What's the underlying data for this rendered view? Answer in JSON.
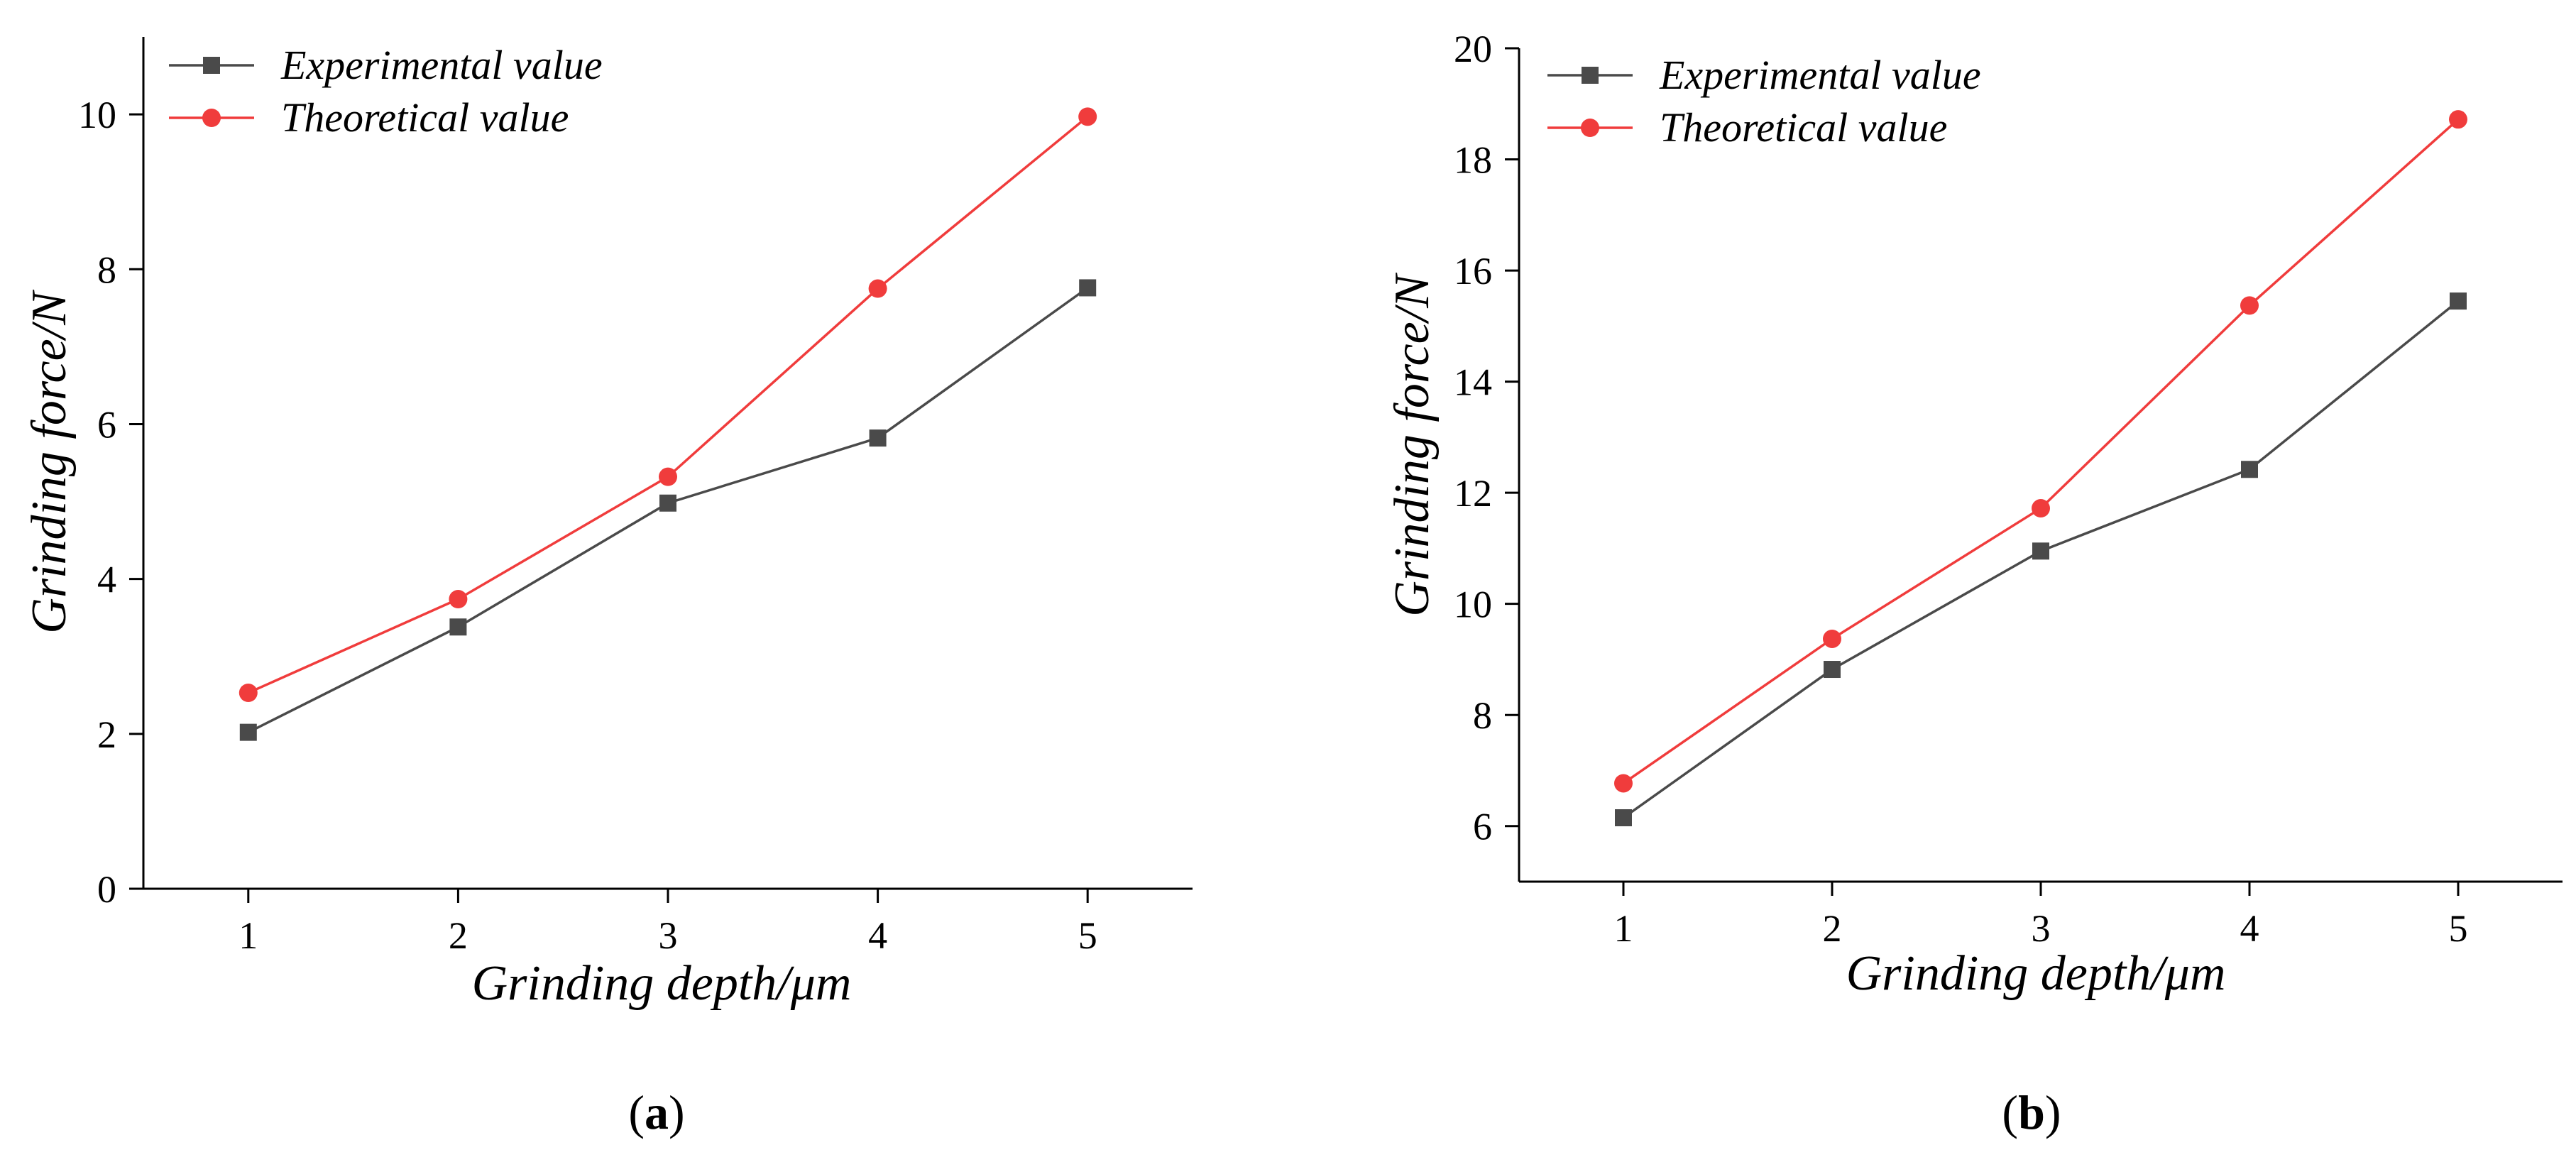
{
  "chart_data": [
    {
      "type": "line",
      "panel_label": "a",
      "x": [
        1,
        2,
        3,
        4,
        5
      ],
      "xlabel": "Grinding depth/μm",
      "ylabel": "Grinding force/N",
      "xlim": [
        0.5,
        5.5
      ],
      "ylim": [
        0,
        11
      ],
      "xticks": [
        1,
        2,
        3,
        4,
        5
      ],
      "yticks": [
        0,
        2,
        4,
        6,
        8,
        10
      ],
      "legend_position": "top-left",
      "series": [
        {
          "name": "Experimental value",
          "values": [
            2.02,
            3.38,
            4.98,
            5.82,
            7.76
          ],
          "color": "#4a4a4a",
          "marker": "square"
        },
        {
          "name": "Theoretical value",
          "values": [
            2.53,
            3.74,
            5.32,
            7.75,
            9.97
          ],
          "color": "#f03c3c",
          "marker": "circle"
        }
      ]
    },
    {
      "type": "line",
      "panel_label": "b",
      "x": [
        1,
        2,
        3,
        4,
        5
      ],
      "xlabel": "Grinding depth/μm",
      "ylabel": "Grinding force/N",
      "xlim": [
        0.5,
        5.5
      ],
      "ylim": [
        5,
        20
      ],
      "xticks": [
        1,
        2,
        3,
        4,
        5
      ],
      "yticks": [
        6,
        8,
        10,
        12,
        14,
        16,
        18,
        20
      ],
      "legend_position": "top-left",
      "series": [
        {
          "name": "Experimental value",
          "values": [
            6.15,
            8.82,
            10.95,
            12.42,
            15.45
          ],
          "color": "#4a4a4a",
          "marker": "square"
        },
        {
          "name": "Theoretical value",
          "values": [
            6.77,
            9.37,
            11.72,
            15.37,
            18.72
          ],
          "color": "#f03c3c",
          "marker": "circle"
        }
      ]
    }
  ]
}
